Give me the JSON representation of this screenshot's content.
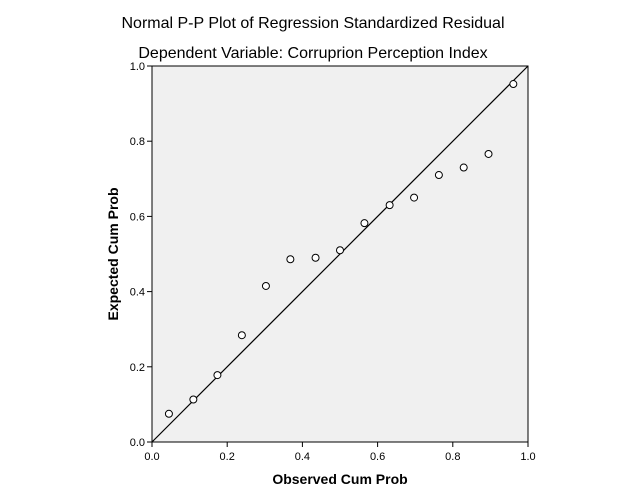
{
  "chart_data": {
    "type": "scatter",
    "title": "Normal P-P Plot of Regression Standardized Residual",
    "subtitle": "Dependent Variable: Corruprion Perception Index",
    "xlabel": "Observed Cum Prob",
    "ylabel": "Expected Cum Prob",
    "xlim": [
      0.0,
      1.0
    ],
    "ylim": [
      0.0,
      1.0
    ],
    "xticks": [
      "0.0",
      "0.2",
      "0.4",
      "0.6",
      "0.8",
      "1.0"
    ],
    "yticks": [
      "0.0",
      "0.2",
      "0.4",
      "0.6",
      "0.8",
      "1.0"
    ],
    "grid": false,
    "reference_line": {
      "from": [
        0,
        0
      ],
      "to": [
        1,
        1
      ]
    },
    "points": [
      {
        "x": 0.045,
        "y": 0.075
      },
      {
        "x": 0.11,
        "y": 0.113
      },
      {
        "x": 0.174,
        "y": 0.178
      },
      {
        "x": 0.239,
        "y": 0.284
      },
      {
        "x": 0.303,
        "y": 0.415
      },
      {
        "x": 0.368,
        "y": 0.486
      },
      {
        "x": 0.435,
        "y": 0.49
      },
      {
        "x": 0.5,
        "y": 0.51
      },
      {
        "x": 0.565,
        "y": 0.582
      },
      {
        "x": 0.632,
        "y": 0.63
      },
      {
        "x": 0.697,
        "y": 0.65
      },
      {
        "x": 0.763,
        "y": 0.71
      },
      {
        "x": 0.829,
        "y": 0.73
      },
      {
        "x": 0.895,
        "y": 0.766
      },
      {
        "x": 0.961,
        "y": 0.952
      }
    ],
    "colors": {
      "plot_background": "#f0f0f0",
      "frame": "#000000",
      "marker_stroke": "#000000",
      "marker_fill": "#ffffff",
      "reference_line": "#000000"
    }
  }
}
